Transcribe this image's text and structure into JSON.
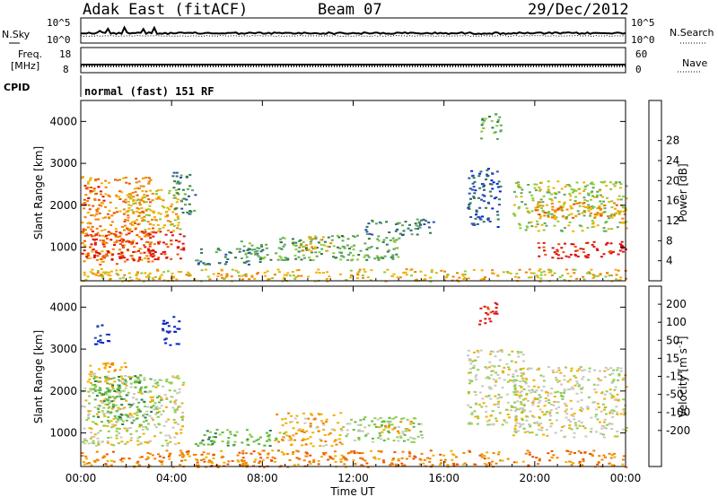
{
  "header": {
    "radar": "Adak East (fitACF)",
    "beam": "Beam 07",
    "date": "29/Dec/2012"
  },
  "noise_panel": {
    "left_label": "N.Sky",
    "right_label": "N.Search",
    "left_ticks": [
      "10^5",
      "10^0"
    ],
    "right_ticks": [
      "10^5",
      "10^0"
    ]
  },
  "freq_panel": {
    "left_label_1": "Freq.",
    "left_label_2": "[MHz]",
    "right_label": "Nave",
    "left_ticks": [
      "18",
      "8"
    ],
    "right_ticks": [
      "60",
      "0"
    ]
  },
  "cpid_panel": {
    "label": "CPID",
    "text": "normal (fast) 151 RF"
  },
  "time_axis": {
    "label": "Time UT",
    "ticks": [
      "00:00",
      "04:00",
      "08:00",
      "12:00",
      "16:00",
      "20:00",
      "00:00"
    ]
  },
  "chart_data": [
    {
      "type": "heatmap",
      "title": "",
      "xlabel": "",
      "ylabel": "Slant Range [km]",
      "x_range_hours": [
        0,
        24
      ],
      "ylim": [
        200,
        4500
      ],
      "y_ticks": [
        1000,
        2000,
        3000,
        4000
      ],
      "colorbar": {
        "label": "Power [dB]",
        "ticks": [
          4,
          8,
          12,
          16,
          20,
          24,
          28
        ],
        "colors": [
          "#0020e0",
          "#2d50a8",
          "#2f7a4a",
          "#5fa85a",
          "#8ccc3c",
          "#f0b000",
          "#f08000",
          "#ee5000",
          "#e01010"
        ]
      },
      "regions": [
        {
          "t": [
            0.0,
            3.2
          ],
          "r": [
            600,
            2700
          ],
          "level": 6
        },
        {
          "t": [
            0.0,
            1.0
          ],
          "r": [
            2000,
            2500
          ],
          "level": 7
        },
        {
          "t": [
            0.0,
            4.5
          ],
          "r": [
            700,
            1400
          ],
          "level": 8
        },
        {
          "t": [
            2.0,
            4.5
          ],
          "r": [
            1400,
            2400
          ],
          "level": 5
        },
        {
          "t": [
            4.0,
            5.0
          ],
          "r": [
            1800,
            2800
          ],
          "level": 2
        },
        {
          "t": [
            5.0,
            8.0
          ],
          "r": [
            600,
            1000
          ],
          "level": 2
        },
        {
          "t": [
            7.0,
            14.0
          ],
          "r": [
            700,
            1300
          ],
          "level": 3
        },
        {
          "t": [
            9.5,
            11.0
          ],
          "r": [
            900,
            1300
          ],
          "level": 5
        },
        {
          "t": [
            12.5,
            15.5
          ],
          "r": [
            1300,
            1700
          ],
          "level": 2
        },
        {
          "t": [
            17.0,
            18.5
          ],
          "r": [
            1500,
            2900
          ],
          "level": 1
        },
        {
          "t": [
            17.5,
            18.5
          ],
          "r": [
            3600,
            4200
          ],
          "level": 3
        },
        {
          "t": [
            19.0,
            24.0
          ],
          "r": [
            1400,
            2600
          ],
          "level": 4
        },
        {
          "t": [
            20.0,
            24.0
          ],
          "r": [
            1700,
            2100
          ],
          "level": 6
        },
        {
          "t": [
            20.0,
            24.0
          ],
          "r": [
            750,
            1150
          ],
          "level": 8
        },
        {
          "t": [
            0.0,
            24.0
          ],
          "r": [
            200,
            500
          ],
          "level": 5
        }
      ]
    },
    {
      "type": "heatmap",
      "title": "",
      "xlabel": "Time UT",
      "ylabel": "Slant Range [km]",
      "x_range_hours": [
        0,
        24
      ],
      "ylim": [
        200,
        4500
      ],
      "y_ticks": [
        1000,
        2000,
        3000,
        4000
      ],
      "colorbar": {
        "label": "Velocity [m s^-1]",
        "ticks": [
          200,
          100,
          50,
          15,
          -15,
          -50,
          -100,
          -200
        ],
        "colors": [
          "#0020c0",
          "#2d4fa0",
          "#2f7a4a",
          "#5fb840",
          "#8cd050",
          "#c8c8c0",
          "#f0b000",
          "#f08000",
          "#ee5000",
          "#e01010"
        ]
      },
      "regions": [
        {
          "t": [
            0.0,
            4.5
          ],
          "r": [
            700,
            2400
          ],
          "level": 5
        },
        {
          "t": [
            0.5,
            3.5
          ],
          "r": [
            1200,
            2400
          ],
          "level": 3
        },
        {
          "t": [
            0.3,
            2.0
          ],
          "r": [
            2200,
            2700
          ],
          "level": 6
        },
        {
          "t": [
            0.5,
            1.2
          ],
          "r": [
            3100,
            3600
          ],
          "level": 0
        },
        {
          "t": [
            3.5,
            4.3
          ],
          "r": [
            3100,
            3800
          ],
          "level": 0
        },
        {
          "t": [
            5.0,
            9.0
          ],
          "r": [
            700,
            1100
          ],
          "level": 3
        },
        {
          "t": [
            8.5,
            11.5
          ],
          "r": [
            700,
            1500
          ],
          "level": 6
        },
        {
          "t": [
            11.5,
            15.0
          ],
          "r": [
            800,
            1400
          ],
          "level": 4
        },
        {
          "t": [
            13.0,
            14.5
          ],
          "r": [
            1000,
            1300
          ],
          "level": 6
        },
        {
          "t": [
            17.5,
            18.3
          ],
          "r": [
            3600,
            4200
          ],
          "level": 9
        },
        {
          "t": [
            17.0,
            19.5
          ],
          "r": [
            1200,
            3000
          ],
          "level": 5
        },
        {
          "t": [
            19.0,
            24.0
          ],
          "r": [
            900,
            2600
          ],
          "level": 5
        },
        {
          "t": [
            0.0,
            24.0
          ],
          "r": [
            200,
            600
          ],
          "level": 7
        }
      ]
    }
  ]
}
